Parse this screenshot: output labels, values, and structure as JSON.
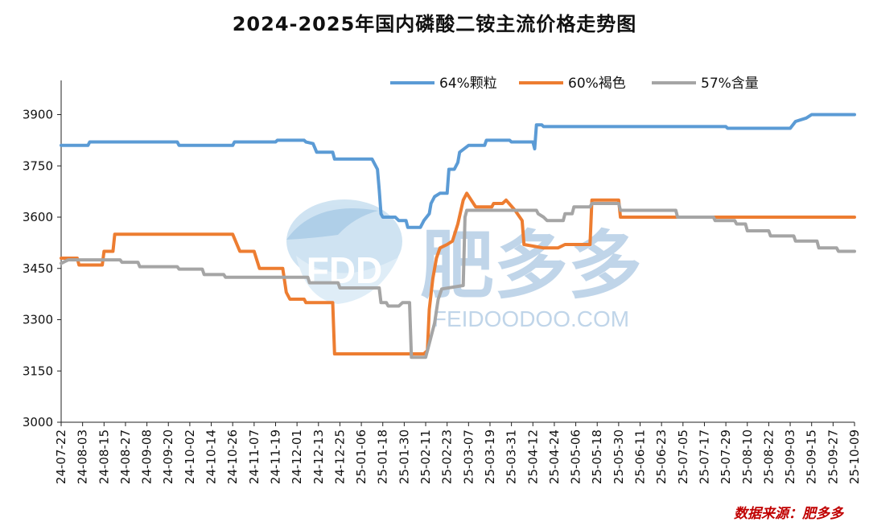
{
  "chart_data": {
    "type": "line",
    "title": "2024-2025年国内磷酸二铵主流价格走势图",
    "xlabel": "",
    "ylabel": "",
    "ylim": [
      3000,
      4000
    ],
    "yticks": [
      3000,
      3150,
      3300,
      3450,
      3600,
      3750,
      3900
    ],
    "grid": false,
    "legend_position": "top-right",
    "x_range": [
      "2024-07-22",
      "2025-10-09"
    ],
    "x_tick_labels": [
      "24-07-22",
      "24-08-03",
      "24-08-15",
      "24-08-27",
      "24-09-08",
      "24-09-20",
      "24-10-02",
      "24-10-14",
      "24-10-26",
      "24-11-07",
      "24-11-19",
      "24-12-01",
      "24-12-13",
      "24-12-25",
      "25-01-06",
      "25-01-18",
      "25-01-30",
      "25-02-11",
      "25-02-23",
      "25-03-07",
      "25-03-19",
      "25-03-31",
      "25-04-12",
      "25-04-24",
      "25-05-06",
      "25-05-18",
      "25-05-30",
      "25-06-11",
      "25-06-23",
      "25-07-05",
      "25-07-17",
      "25-07-29",
      "25-08-10",
      "25-08-22",
      "25-09-03",
      "25-09-15",
      "25-09-27",
      "25-10-09"
    ],
    "series": [
      {
        "name": "64%颗粒",
        "color": "#5b9bd5",
        "points": [
          [
            "2024-07-22",
            3810
          ],
          [
            "2024-08-06",
            3810
          ],
          [
            "2024-08-07",
            3820
          ],
          [
            "2024-09-25",
            3820
          ],
          [
            "2024-09-26",
            3810
          ],
          [
            "2024-10-26",
            3810
          ],
          [
            "2024-10-27",
            3820
          ],
          [
            "2024-11-19",
            3820
          ],
          [
            "2024-11-20",
            3825
          ],
          [
            "2024-12-05",
            3825
          ],
          [
            "2024-12-06",
            3820
          ],
          [
            "2024-12-10",
            3815
          ],
          [
            "2024-12-12",
            3790
          ],
          [
            "2024-12-21",
            3790
          ],
          [
            "2024-12-22",
            3770
          ],
          [
            "2025-01-12",
            3770
          ],
          [
            "2025-01-15",
            3740
          ],
          [
            "2025-01-16",
            3680
          ],
          [
            "2025-01-17",
            3610
          ],
          [
            "2025-01-18",
            3600
          ],
          [
            "2025-01-25",
            3600
          ],
          [
            "2025-01-27",
            3590
          ],
          [
            "2025-01-31",
            3590
          ],
          [
            "2025-02-01",
            3570
          ],
          [
            "2025-02-08",
            3570
          ],
          [
            "2025-02-10",
            3590
          ],
          [
            "2025-02-13",
            3610
          ],
          [
            "2025-02-14",
            3640
          ],
          [
            "2025-02-16",
            3660
          ],
          [
            "2025-02-19",
            3670
          ],
          [
            "2025-02-23",
            3670
          ],
          [
            "2025-02-24",
            3740
          ],
          [
            "2025-02-27",
            3740
          ],
          [
            "2025-03-01",
            3760
          ],
          [
            "2025-03-02",
            3790
          ],
          [
            "2025-03-07",
            3810
          ],
          [
            "2025-03-16",
            3810
          ],
          [
            "2025-03-17",
            3825
          ],
          [
            "2025-03-30",
            3825
          ],
          [
            "2025-03-31",
            3820
          ],
          [
            "2025-04-12",
            3820
          ],
          [
            "2025-04-13",
            3800
          ],
          [
            "2025-04-14",
            3870
          ],
          [
            "2025-04-17",
            3870
          ],
          [
            "2025-04-18",
            3865
          ],
          [
            "2025-07-29",
            3865
          ],
          [
            "2025-07-30",
            3860
          ],
          [
            "2025-09-03",
            3860
          ],
          [
            "2025-09-06",
            3880
          ],
          [
            "2025-09-12",
            3890
          ],
          [
            "2025-09-15",
            3900
          ],
          [
            "2025-10-09",
            3900
          ]
        ]
      },
      {
        "name": "60%褐色",
        "color": "#ed7d31",
        "points": [
          [
            "2024-07-22",
            3480
          ],
          [
            "2024-07-31",
            3480
          ],
          [
            "2024-08-01",
            3460
          ],
          [
            "2024-08-14",
            3460
          ],
          [
            "2024-08-15",
            3500
          ],
          [
            "2024-08-20",
            3500
          ],
          [
            "2024-08-21",
            3550
          ],
          [
            "2024-10-26",
            3550
          ],
          [
            "2024-10-30",
            3500
          ],
          [
            "2024-11-07",
            3500
          ],
          [
            "2024-11-10",
            3450
          ],
          [
            "2024-11-23",
            3450
          ],
          [
            "2024-11-25",
            3380
          ],
          [
            "2024-11-27",
            3360
          ],
          [
            "2024-12-05",
            3360
          ],
          [
            "2024-12-06",
            3350
          ],
          [
            "2024-12-21",
            3350
          ],
          [
            "2024-12-22",
            3200
          ],
          [
            "2025-02-10",
            3200
          ],
          [
            "2025-02-12",
            3210
          ],
          [
            "2025-02-13",
            3330
          ],
          [
            "2025-02-15",
            3420
          ],
          [
            "2025-02-17",
            3480
          ],
          [
            "2025-02-19",
            3510
          ],
          [
            "2025-02-23",
            3520
          ],
          [
            "2025-02-26",
            3530
          ],
          [
            "2025-03-01",
            3580
          ],
          [
            "2025-03-04",
            3650
          ],
          [
            "2025-03-06",
            3670
          ],
          [
            "2025-03-11",
            3630
          ],
          [
            "2025-03-20",
            3630
          ],
          [
            "2025-03-21",
            3640
          ],
          [
            "2025-03-26",
            3640
          ],
          [
            "2025-03-28",
            3650
          ],
          [
            "2025-04-02",
            3620
          ],
          [
            "2025-04-06",
            3590
          ],
          [
            "2025-04-07",
            3520
          ],
          [
            "2025-04-18",
            3510
          ],
          [
            "2025-04-26",
            3510
          ],
          [
            "2025-04-30",
            3520
          ],
          [
            "2025-05-14",
            3520
          ],
          [
            "2025-05-15",
            3650
          ],
          [
            "2025-05-30",
            3650
          ],
          [
            "2025-05-31",
            3600
          ],
          [
            "2025-10-09",
            3600
          ]
        ]
      },
      {
        "name": "57%含量",
        "color": "#a5a5a5",
        "points": [
          [
            "2024-07-22",
            3465
          ],
          [
            "2024-07-26",
            3475
          ],
          [
            "2024-08-24",
            3475
          ],
          [
            "2024-08-25",
            3468
          ],
          [
            "2024-09-03",
            3468
          ],
          [
            "2024-09-04",
            3455
          ],
          [
            "2024-09-25",
            3455
          ],
          [
            "2024-09-26",
            3448
          ],
          [
            "2024-10-09",
            3448
          ],
          [
            "2024-10-10",
            3432
          ],
          [
            "2024-10-21",
            3432
          ],
          [
            "2024-10-22",
            3424
          ],
          [
            "2024-12-07",
            3424
          ],
          [
            "2024-12-08",
            3408
          ],
          [
            "2024-12-24",
            3408
          ],
          [
            "2024-12-25",
            3393
          ],
          [
            "2025-01-16",
            3393
          ],
          [
            "2025-01-17",
            3350
          ],
          [
            "2025-01-20",
            3350
          ],
          [
            "2025-01-21",
            3340
          ],
          [
            "2025-01-27",
            3340
          ],
          [
            "2025-01-29",
            3350
          ],
          [
            "2025-02-02",
            3350
          ],
          [
            "2025-02-03",
            3190
          ],
          [
            "2025-02-11",
            3190
          ],
          [
            "2025-02-13",
            3230
          ],
          [
            "2025-02-16",
            3290
          ],
          [
            "2025-02-18",
            3360
          ],
          [
            "2025-02-20",
            3390
          ],
          [
            "2025-03-04",
            3400
          ],
          [
            "2025-03-05",
            3600
          ],
          [
            "2025-03-06",
            3620
          ],
          [
            "2025-04-14",
            3620
          ],
          [
            "2025-04-15",
            3610
          ],
          [
            "2025-04-18",
            3600
          ],
          [
            "2025-04-20",
            3590
          ],
          [
            "2025-04-29",
            3590
          ],
          [
            "2025-04-30",
            3610
          ],
          [
            "2025-05-04",
            3610
          ],
          [
            "2025-05-05",
            3630
          ],
          [
            "2025-05-14",
            3630
          ],
          [
            "2025-05-15",
            3640
          ],
          [
            "2025-05-30",
            3640
          ],
          [
            "2025-05-31",
            3620
          ],
          [
            "2025-07-01",
            3620
          ],
          [
            "2025-07-02",
            3600
          ],
          [
            "2025-07-22",
            3600
          ],
          [
            "2025-07-23",
            3590
          ],
          [
            "2025-08-03",
            3590
          ],
          [
            "2025-08-04",
            3580
          ],
          [
            "2025-08-09",
            3580
          ],
          [
            "2025-08-10",
            3560
          ],
          [
            "2025-08-22",
            3560
          ],
          [
            "2025-08-23",
            3545
          ],
          [
            "2025-09-05",
            3545
          ],
          [
            "2025-09-06",
            3530
          ],
          [
            "2025-09-18",
            3530
          ],
          [
            "2025-09-19",
            3510
          ],
          [
            "2025-09-29",
            3510
          ],
          [
            "2025-09-30",
            3500
          ],
          [
            "2025-10-09",
            3500
          ]
        ]
      }
    ]
  },
  "watermark": {
    "logo": "FDD",
    "brand": "肥多多",
    "url": "FEIDOODOO.COM"
  },
  "source_note": "数据来源：肥多多"
}
